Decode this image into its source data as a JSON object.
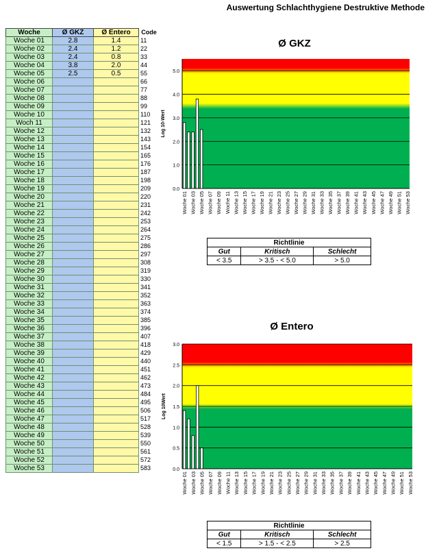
{
  "page": {
    "title": "Auswertung Schlachthygiene Destruktive Methode"
  },
  "table": {
    "headers": {
      "week": "Woche",
      "gkz": "Ø GKZ",
      "entero": "Ø Entero",
      "code": "Code"
    },
    "rows": [
      {
        "week": "Woche 01",
        "gkz": "2.8",
        "entero": "1.4",
        "code": "11"
      },
      {
        "week": "Woche 02",
        "gkz": "2.4",
        "entero": "1.2",
        "code": "22"
      },
      {
        "week": "Woche 03",
        "gkz": "2.4",
        "entero": "0.8",
        "code": "33"
      },
      {
        "week": "Woche 04",
        "gkz": "3.8",
        "entero": "2.0",
        "code": "44"
      },
      {
        "week": "Woche 05",
        "gkz": "2.5",
        "entero": "0.5",
        "code": "55"
      },
      {
        "week": "Woche 06",
        "gkz": "",
        "entero": "",
        "code": "66"
      },
      {
        "week": "Woche 07",
        "gkz": "",
        "entero": "",
        "code": "77"
      },
      {
        "week": "Woche 08",
        "gkz": "",
        "entero": "",
        "code": "88"
      },
      {
        "week": "Woche 09",
        "gkz": "",
        "entero": "",
        "code": "99"
      },
      {
        "week": "Woche 10",
        "gkz": "",
        "entero": "",
        "code": "110"
      },
      {
        "week": "Woch 11",
        "gkz": "",
        "entero": "",
        "code": "121"
      },
      {
        "week": "Woche 12",
        "gkz": "",
        "entero": "",
        "code": "132"
      },
      {
        "week": "Woche 13",
        "gkz": "",
        "entero": "",
        "code": "143"
      },
      {
        "week": "Woche 14",
        "gkz": "",
        "entero": "",
        "code": "154"
      },
      {
        "week": "Woche 15",
        "gkz": "",
        "entero": "",
        "code": "165"
      },
      {
        "week": "Woche 16",
        "gkz": "",
        "entero": "",
        "code": "176"
      },
      {
        "week": "Woche 17",
        "gkz": "",
        "entero": "",
        "code": "187"
      },
      {
        "week": "Woche 18",
        "gkz": "",
        "entero": "",
        "code": "198"
      },
      {
        "week": "Woche 19",
        "gkz": "",
        "entero": "",
        "code": "209"
      },
      {
        "week": "Woche 20",
        "gkz": "",
        "entero": "",
        "code": "220"
      },
      {
        "week": "Woche 21",
        "gkz": "",
        "entero": "",
        "code": "231"
      },
      {
        "week": "Woche 22",
        "gkz": "",
        "entero": "",
        "code": "242"
      },
      {
        "week": "Woche 23",
        "gkz": "",
        "entero": "",
        "code": "253"
      },
      {
        "week": "Woche 24",
        "gkz": "",
        "entero": "",
        "code": "264"
      },
      {
        "week": "Woche 25",
        "gkz": "",
        "entero": "",
        "code": "275"
      },
      {
        "week": "Woche 26",
        "gkz": "",
        "entero": "",
        "code": "286"
      },
      {
        "week": "Woche 27",
        "gkz": "",
        "entero": "",
        "code": "297"
      },
      {
        "week": "Woche 28",
        "gkz": "",
        "entero": "",
        "code": "308"
      },
      {
        "week": "Woche 29",
        "gkz": "",
        "entero": "",
        "code": "319"
      },
      {
        "week": "Woche 30",
        "gkz": "",
        "entero": "",
        "code": "330"
      },
      {
        "week": "Woche 31",
        "gkz": "",
        "entero": "",
        "code": "341"
      },
      {
        "week": "Woche 32",
        "gkz": "",
        "entero": "",
        "code": "352"
      },
      {
        "week": "Woche 33",
        "gkz": "",
        "entero": "",
        "code": "363"
      },
      {
        "week": "Woche 34",
        "gkz": "",
        "entero": "",
        "code": "374"
      },
      {
        "week": "Woche 35",
        "gkz": "",
        "entero": "",
        "code": "385"
      },
      {
        "week": "Woche 36",
        "gkz": "",
        "entero": "",
        "code": "396"
      },
      {
        "week": "Woche 37",
        "gkz": "",
        "entero": "",
        "code": "407"
      },
      {
        "week": "Woche 38",
        "gkz": "",
        "entero": "",
        "code": "418"
      },
      {
        "week": "Woche 39",
        "gkz": "",
        "entero": "",
        "code": "429"
      },
      {
        "week": "Woche 40",
        "gkz": "",
        "entero": "",
        "code": "440"
      },
      {
        "week": "Woche 41",
        "gkz": "",
        "entero": "",
        "code": "451"
      },
      {
        "week": "Woche 42",
        "gkz": "",
        "entero": "",
        "code": "462"
      },
      {
        "week": "Woche 43",
        "gkz": "",
        "entero": "",
        "code": "473"
      },
      {
        "week": "Woche 44",
        "gkz": "",
        "entero": "",
        "code": "484"
      },
      {
        "week": "Woche 45",
        "gkz": "",
        "entero": "",
        "code": "495"
      },
      {
        "week": "Woche 46",
        "gkz": "",
        "entero": "",
        "code": "506"
      },
      {
        "week": "Woche 47",
        "gkz": "",
        "entero": "",
        "code": "517"
      },
      {
        "week": "Woche 48",
        "gkz": "",
        "entero": "",
        "code": "528"
      },
      {
        "week": "Woche 49",
        "gkz": "",
        "entero": "",
        "code": "539"
      },
      {
        "week": "Woche 50",
        "gkz": "",
        "entero": "",
        "code": "550"
      },
      {
        "week": "Woche 51",
        "gkz": "",
        "entero": "",
        "code": "561"
      },
      {
        "week": "Woche 52",
        "gkz": "",
        "entero": "",
        "code": "572"
      },
      {
        "week": "Woche 53",
        "gkz": "",
        "entero": "",
        "code": "583"
      }
    ]
  },
  "guides": [
    {
      "head": "Richtlinie",
      "gut": "Gut",
      "kritisch": "Kritisch",
      "schlecht": "Schlecht",
      "v_gut": "< 3.5",
      "v_kritisch": "> 3.5  - < 5.0",
      "v_schlecht": "> 5.0"
    },
    {
      "head": "Richtlinie",
      "gut": "Gut",
      "kritisch": "Kritisch",
      "schlecht": "Schlecht",
      "v_gut": "< 1.5",
      "v_kritisch": "> 1.5  - < 2.5",
      "v_schlecht": "> 2.5"
    }
  ],
  "colors": {
    "good": "#00b050",
    "critical": "#ffff00",
    "bad": "#ff0000",
    "bar_fill": "#ffffff",
    "bar_stroke": "#000000"
  },
  "chart_data": [
    {
      "type": "bar",
      "title": "Ø GKZ",
      "ylabel": "Log 10-Wert",
      "xlabel": "",
      "ylim": [
        0,
        5.5
      ],
      "yticks": [
        "0.0",
        "1.0",
        "2.0",
        "3.0",
        "4.0",
        "5.0"
      ],
      "ytick_values": [
        0,
        1,
        2,
        3,
        4,
        5
      ],
      "bands": [
        {
          "name": "Gut",
          "from": 0,
          "to": 3.5,
          "color": "#00b050"
        },
        {
          "name": "Kritisch",
          "from": 3.5,
          "to": 5.0,
          "color": "#ffff00"
        },
        {
          "name": "Schlecht",
          "from": 5.0,
          "to": 5.5,
          "color": "#ff0000"
        }
      ],
      "x_tick_labels": [
        "Woche 01",
        "Woche 03",
        "Woche 05",
        "Woche 07",
        "Woche 09",
        "Woche 11",
        "Woche 13",
        "Woche 15",
        "Woche 17",
        "Woche 19",
        "Woche 21",
        "Woche 23",
        "Woche 25",
        "Woche 27",
        "Woche 29",
        "Woche 31",
        "Woche 33",
        "Woche 35",
        "Woche 37",
        "Woche 39",
        "Woche 41",
        "Woche 43",
        "Woche 45",
        "Woche 47",
        "Woche 49",
        "Woche 51",
        "Woche 53"
      ],
      "categories_count": 53,
      "values": [
        2.8,
        2.4,
        2.4,
        3.8,
        2.5
      ]
    },
    {
      "type": "bar",
      "title": "Ø Entero",
      "ylabel": "Log 10Wert",
      "xlabel": "",
      "ylim": [
        0,
        3.0
      ],
      "yticks": [
        "0.0",
        "0.5",
        "1.0",
        "1.5",
        "2.0",
        "2.5",
        "3.0"
      ],
      "ytick_values": [
        0,
        0.5,
        1.0,
        1.5,
        2.0,
        2.5,
        3.0
      ],
      "bands": [
        {
          "name": "Gut",
          "from": 0,
          "to": 1.5,
          "color": "#00b050"
        },
        {
          "name": "Kritisch",
          "from": 1.5,
          "to": 2.5,
          "color": "#ffff00"
        },
        {
          "name": "Schlecht",
          "from": 2.5,
          "to": 3.0,
          "color": "#ff0000"
        }
      ],
      "x_tick_labels": [
        "Woche 01",
        "Woche 03",
        "Woche 05",
        "Woche 07",
        "Woche 09",
        "Woche 11",
        "Woche 13",
        "Woche 15",
        "Woche 17",
        "Woche 19",
        "Woche 21",
        "Woche 23",
        "Woche 25",
        "Woche 27",
        "Woche 29",
        "Woche 31",
        "Woche 33",
        "Woche 35",
        "Woche 37",
        "Woche 39",
        "Woche 41",
        "Woche 43",
        "Woche 45",
        "Woche 47",
        "Woche 49",
        "Woche 51",
        "Woche 53"
      ],
      "categories_count": 53,
      "values": [
        1.4,
        1.2,
        0.8,
        2.0,
        0.5
      ]
    }
  ]
}
